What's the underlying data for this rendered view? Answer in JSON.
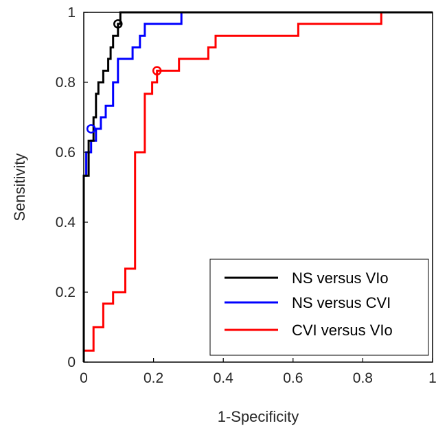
{
  "chart_data": {
    "type": "line",
    "title": "",
    "xlabel": "1-Specificity",
    "ylabel": "Sensitivity",
    "xlim": [
      0,
      1
    ],
    "ylim": [
      0,
      1
    ],
    "xticks": [
      "0",
      "0.2",
      "0.4",
      "0.6",
      "0.8",
      "1"
    ],
    "yticks": [
      "0",
      "0.2",
      "0.4",
      "0.6",
      "0.8",
      "1"
    ],
    "grid": false,
    "legend_position": "bottom-right",
    "series": [
      {
        "name": "NS versus VIo",
        "color": "#000000",
        "x": [
          0,
          0,
          0.014,
          0.014,
          0.028,
          0.028,
          0.035,
          0.035,
          0.042,
          0.042,
          0.056,
          0.056,
          0.07,
          0.07,
          0.077,
          0.077,
          0.084,
          0.084,
          0.098,
          0.098,
          0.105,
          0.105,
          1.0
        ],
        "y": [
          0,
          0.533,
          0.533,
          0.633,
          0.633,
          0.7,
          0.7,
          0.767,
          0.767,
          0.8,
          0.8,
          0.833,
          0.833,
          0.867,
          0.867,
          0.9,
          0.9,
          0.933,
          0.933,
          0.967,
          0.967,
          1.0,
          1.0
        ],
        "marker": {
          "x": 0.098,
          "y": 0.967
        }
      },
      {
        "name": "NS versus CVI",
        "color": "#0000ff",
        "x": [
          0,
          0,
          0.007,
          0.007,
          0.021,
          0.021,
          0.035,
          0.035,
          0.049,
          0.049,
          0.063,
          0.063,
          0.084,
          0.084,
          0.098,
          0.098,
          0.14,
          0.14,
          0.161,
          0.161,
          0.175,
          0.175,
          0.189,
          0.189,
          0.28,
          0.28,
          1.0
        ],
        "y": [
          0.033,
          0.533,
          0.533,
          0.6,
          0.6,
          0.633,
          0.633,
          0.667,
          0.667,
          0.7,
          0.7,
          0.733,
          0.733,
          0.8,
          0.8,
          0.867,
          0.867,
          0.9,
          0.9,
          0.933,
          0.933,
          0.967,
          0.967,
          0.967,
          0.967,
          1.0,
          1.0
        ],
        "marker": {
          "x": 0.021,
          "y": 0.667
        }
      },
      {
        "name": "CVI versus VIo",
        "color": "#ff0000",
        "x": [
          0,
          0,
          0.028,
          0.028,
          0.056,
          0.056,
          0.084,
          0.084,
          0.098,
          0.098,
          0.119,
          0.119,
          0.147,
          0.147,
          0.175,
          0.175,
          0.196,
          0.196,
          0.21,
          0.21,
          0.273,
          0.273,
          0.357,
          0.357,
          0.378,
          0.378,
          0.615,
          0.615,
          0.853,
          0.853,
          1.0
        ],
        "y": [
          0,
          0.033,
          0.033,
          0.1,
          0.1,
          0.167,
          0.167,
          0.2,
          0.2,
          0.2,
          0.2,
          0.267,
          0.267,
          0.6,
          0.6,
          0.767,
          0.767,
          0.8,
          0.8,
          0.833,
          0.833,
          0.867,
          0.867,
          0.9,
          0.9,
          0.933,
          0.933,
          0.967,
          0.967,
          1.0,
          1.0
        ],
        "marker": {
          "x": 0.21,
          "y": 0.833
        }
      }
    ]
  }
}
